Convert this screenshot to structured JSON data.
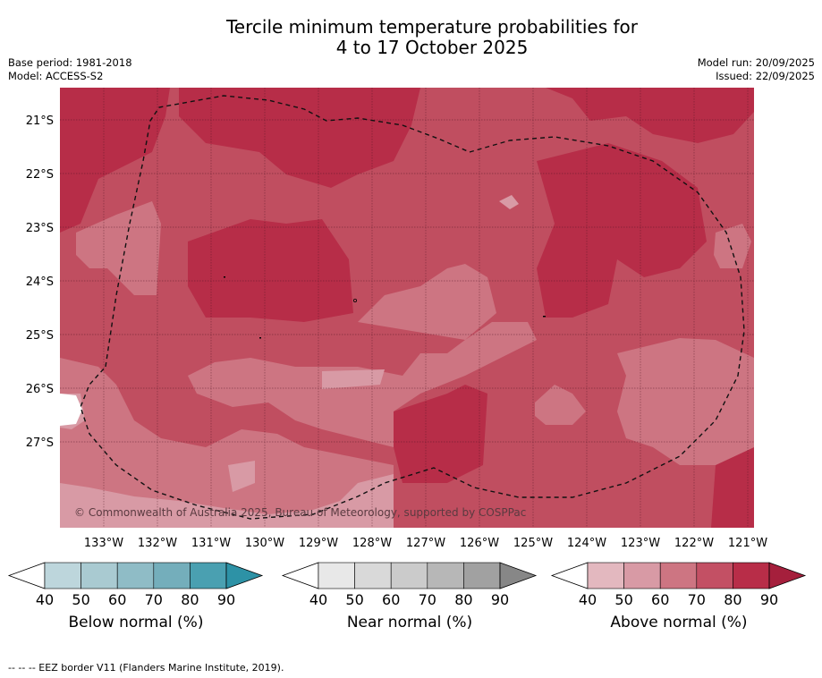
{
  "title": {
    "line1": "Tercile minimum temperature probabilities for",
    "line2": "4 to 17 October 2025"
  },
  "meta_left": {
    "base_period": "Base period: 1981-2018",
    "model": "Model: ACCESS-S2"
  },
  "meta_right": {
    "model_run": "Model run: 20/09/2025",
    "issued": "Issued: 22/09/2025"
  },
  "map": {
    "lat_labels": [
      "21°S",
      "22°S",
      "23°S",
      "24°S",
      "25°S",
      "26°S",
      "27°S"
    ],
    "lon_labels": [
      "133°W",
      "132°W",
      "131°W",
      "130°W",
      "129°W",
      "128°W",
      "127°W",
      "126°W",
      "125°W",
      "124°W",
      "123°W",
      "122°W",
      "121°W"
    ],
    "copyright": "© Commonwealth of Australia 2025, Bureau of Meteorology, supported by COSPPac"
  },
  "colorbars": [
    {
      "title": "Below normal (%)",
      "ticks": [
        "40",
        "50",
        "60",
        "70",
        "80",
        "90"
      ],
      "colors": [
        "#bdd6dc",
        "#a9cad1",
        "#8fbcc6",
        "#74aebb",
        "#4aa0b1",
        "#2d92a6"
      ]
    },
    {
      "title": "Near normal (%)",
      "ticks": [
        "40",
        "50",
        "60",
        "70",
        "80",
        "90"
      ],
      "colors": [
        "#e8e8e8",
        "#d9d9d9",
        "#cbcbcb",
        "#b7b7b7",
        "#a1a1a1",
        "#878787"
      ]
    },
    {
      "title": "Above normal (%)",
      "ticks": [
        "40",
        "50",
        "60",
        "70",
        "80",
        "90"
      ],
      "colors": [
        "#e3b8bf",
        "#d89aa5",
        "#cd7582",
        "#c35064",
        "#b82d48",
        "#a51f3c"
      ]
    }
  ],
  "footer": "--  --  -- EEZ border V11 (Flanders Marine Institute, 2019)."
}
